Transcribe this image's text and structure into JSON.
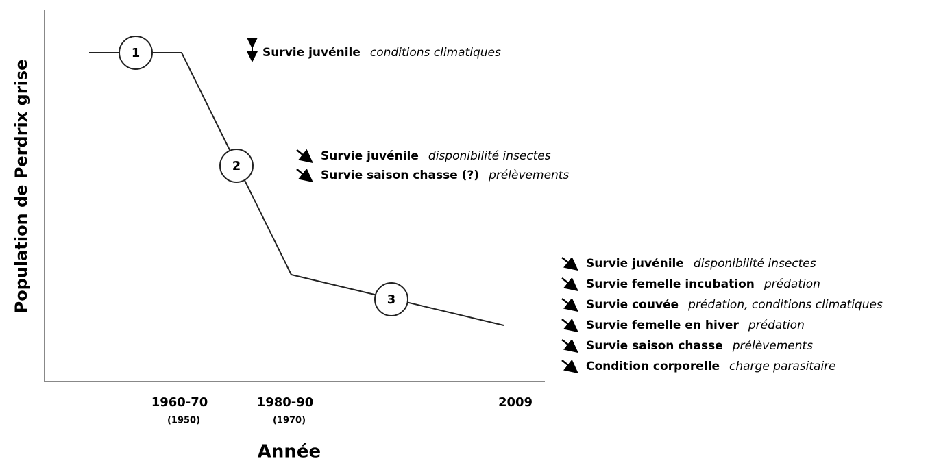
{
  "axes": {
    "y_label": "Population de Perdrix grise",
    "x_label": "Année",
    "x_labels": [
      {
        "period": "1960-70",
        "alt": "(1950)"
      },
      {
        "period": "1980-90",
        "alt": "(1970)"
      },
      {
        "period": "2009"
      }
    ]
  },
  "phases": [
    "1",
    "2",
    "3"
  ],
  "annotations": [
    {
      "items": [
        {
          "factor": "Survie juvénile",
          "cause": "conditions climatiques"
        }
      ]
    },
    {
      "items": [
        {
          "factor": "Survie juvénile",
          "cause": "disponibilité insectes"
        },
        {
          "factor": "Survie saison chasse (?)",
          "cause": "prélèvements"
        }
      ]
    },
    {
      "items": [
        {
          "factor": "Survie juvénile",
          "cause": "disponibilité insectes"
        },
        {
          "factor": "Survie femelle incubation",
          "cause": "prédation"
        },
        {
          "factor": "Survie couvée",
          "cause": "prédation, conditions climatiques"
        },
        {
          "factor": "Survie femelle en hiver",
          "cause": "prédation"
        },
        {
          "factor": "Survie saison chasse",
          "cause": "prélèvements"
        },
        {
          "factor": "Condition corporelle",
          "cause": "charge parasitaire"
        }
      ]
    }
  ]
}
